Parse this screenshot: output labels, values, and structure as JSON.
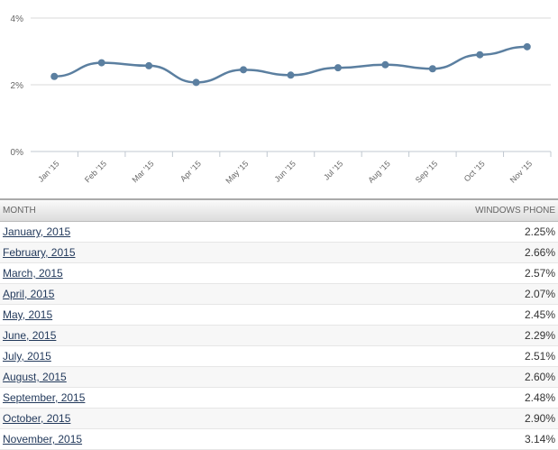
{
  "chart_data": {
    "type": "line",
    "categories": [
      "Jan '15",
      "Feb '15",
      "Mar '15",
      "Apr '15",
      "May '15",
      "Jun '15",
      "Jul '15",
      "Aug '15",
      "Sep '15",
      "Oct '15",
      "Nov '15"
    ],
    "series": [
      {
        "name": "Windows Phone",
        "values": [
          2.25,
          2.66,
          2.57,
          2.07,
          2.45,
          2.29,
          2.51,
          2.6,
          2.48,
          2.9,
          3.14
        ],
        "color": "#5b7fa0"
      }
    ],
    "yticks": [
      "0%",
      "2%",
      "4%"
    ],
    "ylim": [
      0,
      4
    ],
    "grid": true
  },
  "table": {
    "headers": [
      "MONTH",
      "WINDOWS PHONE"
    ],
    "rows": [
      [
        "January, 2015",
        "2.25%"
      ],
      [
        "February, 2015",
        "2.66%"
      ],
      [
        "March, 2015",
        "2.57%"
      ],
      [
        "April, 2015",
        "2.07%"
      ],
      [
        "May, 2015",
        "2.45%"
      ],
      [
        "June, 2015",
        "2.29%"
      ],
      [
        "July, 2015",
        "2.51%"
      ],
      [
        "August, 2015",
        "2.60%"
      ],
      [
        "September, 2015",
        "2.48%"
      ],
      [
        "October, 2015",
        "2.90%"
      ],
      [
        "November, 2015",
        "3.14%"
      ]
    ]
  }
}
